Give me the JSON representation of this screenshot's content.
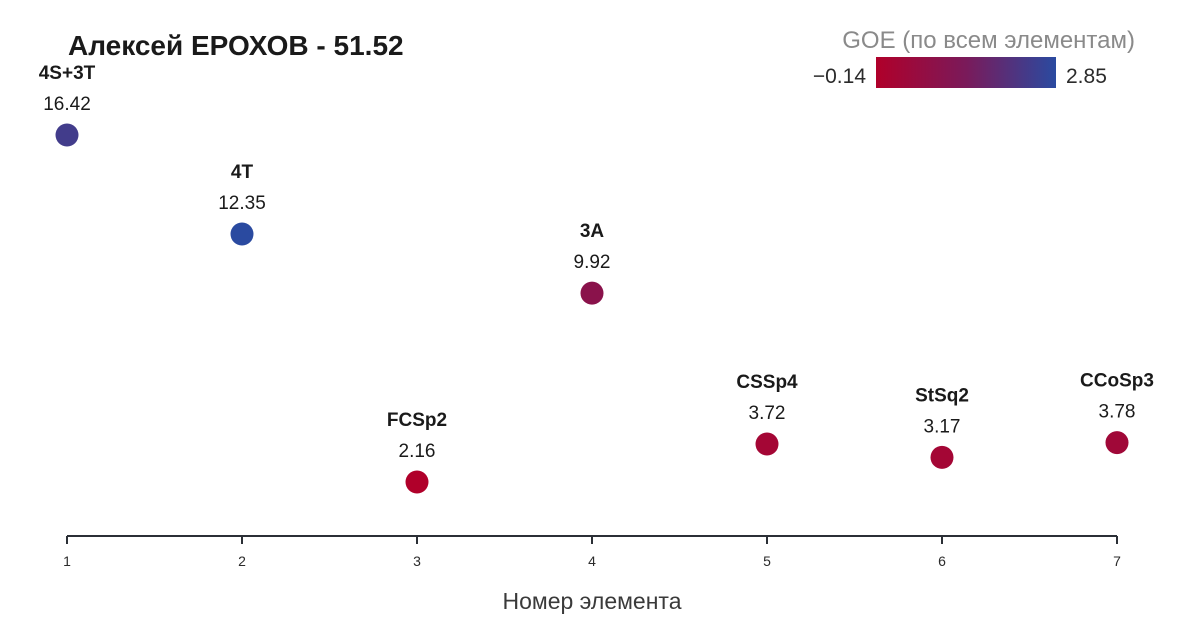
{
  "chart_data": {
    "type": "scatter",
    "title": "Алексей ЕРОХОВ - 51.52",
    "xlabel": "Номер элемента",
    "ylabel": "",
    "x_ticks": [
      "1",
      "2",
      "3",
      "4",
      "5",
      "6",
      "7"
    ],
    "xlim": [
      1,
      7
    ],
    "ylim": [
      0,
      18
    ],
    "grid": false,
    "points": [
      {
        "x": 1,
        "y": 16.42,
        "name": "4S+3T",
        "label": "16.42",
        "goe": 2.4
      },
      {
        "x": 2,
        "y": 12.35,
        "name": "4T",
        "label": "12.35",
        "goe": 2.85
      },
      {
        "x": 3,
        "y": 2.16,
        "name": "FCSp2",
        "label": "2.16",
        "goe": -0.14
      },
      {
        "x": 4,
        "y": 9.92,
        "name": "3A",
        "label": "9.92",
        "goe": 0.9
      },
      {
        "x": 5,
        "y": 3.72,
        "name": "CSSp4",
        "label": "3.72",
        "goe": 0.2
      },
      {
        "x": 6,
        "y": 3.17,
        "name": "StSq2",
        "label": "3.17",
        "goe": 0.2
      },
      {
        "x": 7,
        "y": 3.78,
        "name": "CCoSp3",
        "label": "3.78",
        "goe": 0.3
      }
    ],
    "colorbar": {
      "title": "GOE (по всем элементам)",
      "min_label": "−0.14",
      "max_label": "2.85",
      "min": -0.14,
      "max": 2.85,
      "colors": [
        "#b0002a",
        "#7a1a5a",
        "#2a4aa0"
      ],
      "placement": "top-right"
    }
  }
}
